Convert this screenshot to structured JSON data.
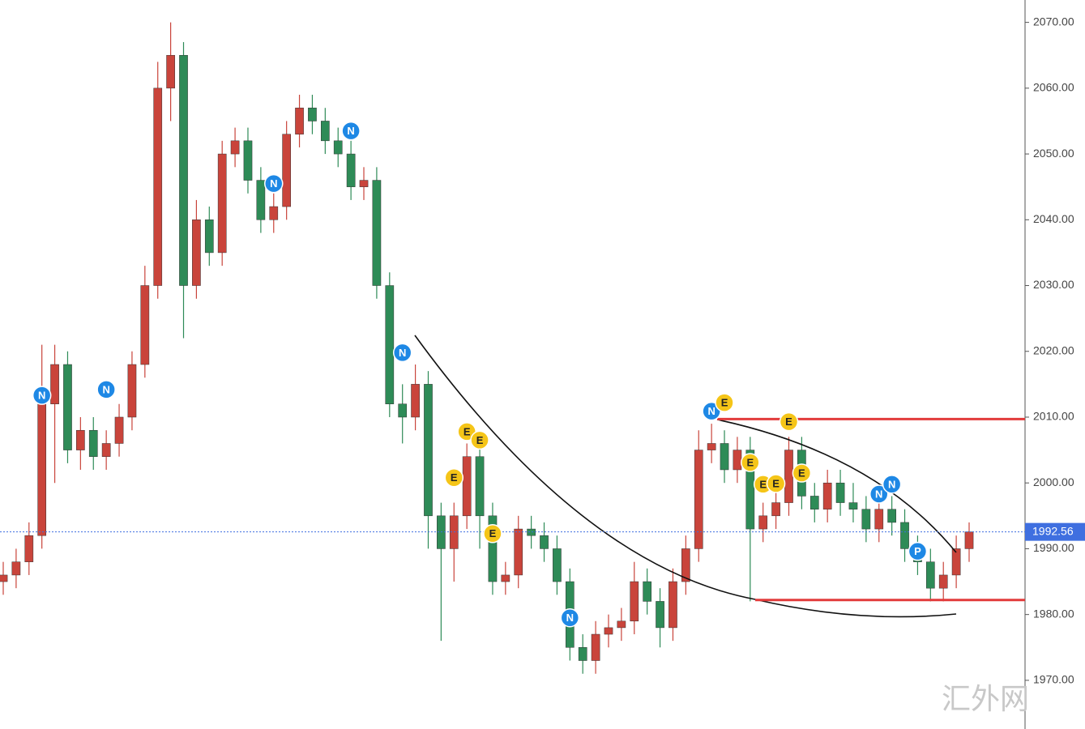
{
  "chart_data": {
    "type": "candlestick",
    "open": [
      1985,
      1986,
      1988,
      1992,
      2012,
      2018,
      2005,
      2008,
      2004,
      2006,
      2010,
      2018,
      2030,
      2060,
      2065,
      2030,
      2040,
      2035,
      2050,
      2052,
      2046,
      2040,
      2042,
      2053,
      2057,
      2055,
      2052,
      2050,
      2045,
      2046,
      2030,
      2012,
      2010,
      2015,
      1995,
      1990,
      1995,
      2004,
      1995,
      1985,
      1986,
      1993,
      1992,
      1990,
      1985,
      1975,
      1973,
      1977,
      1978,
      1979,
      1985,
      1982,
      1978,
      1985,
      1990,
      2005,
      2006,
      2002,
      2005,
      1993,
      1995,
      1997,
      2005,
      1998,
      1996,
      2000,
      1997,
      1996,
      1993,
      1996,
      1994,
      1990,
      1988,
      1984,
      1986,
      1990
    ],
    "high": [
      1988,
      1990,
      1994,
      2021,
      2021,
      2020,
      2010,
      2010,
      2008,
      2012,
      2020,
      2033,
      2064,
      2070,
      2067,
      2043,
      2042,
      2052,
      2054,
      2054,
      2048,
      2044,
      2055,
      2059,
      2059,
      2057,
      2054,
      2052,
      2048,
      2048,
      2032,
      2015,
      2018,
      2017,
      1997,
      1997,
      2006,
      2006,
      1997,
      1988,
      1995,
      1995,
      1994,
      1992,
      1987,
      1977,
      1979,
      1980,
      1981,
      1988,
      1987,
      1984,
      1987,
      1992,
      2008,
      2009,
      2008,
      2007,
      2007,
      1997,
      1999,
      2007,
      2007,
      2000,
      2002,
      2002,
      2000,
      1998,
      1998,
      1998,
      1996,
      1992,
      1990,
      1988,
      1992,
      1994
    ],
    "low": [
      1983,
      1984,
      1986,
      1990,
      2000,
      2003,
      2002,
      2002,
      2002,
      2004,
      2008,
      2016,
      2028,
      2055,
      2022,
      2028,
      2033,
      2033,
      2048,
      2044,
      2038,
      2038,
      2040,
      2051,
      2053,
      2050,
      2048,
      2043,
      2043,
      2028,
      2010,
      2006,
      2008,
      1990,
      1976,
      1985,
      1993,
      1990,
      1983,
      1983,
      1984,
      1990,
      1988,
      1983,
      1973,
      1971,
      1971,
      1975,
      1976,
      1977,
      1980,
      1975,
      1976,
      1983,
      1988,
      2003,
      2000,
      2000,
      1982,
      1991,
      1993,
      1995,
      1996,
      1994,
      1994,
      1995,
      1994,
      1991,
      1991,
      1992,
      1988,
      1986,
      1982,
      1982,
      1984,
      1988
    ],
    "close": [
      1986,
      1988,
      1992,
      2012,
      2018,
      2005,
      2008,
      2004,
      2006,
      2010,
      2018,
      2030,
      2060,
      2065,
      2030,
      2040,
      2035,
      2050,
      2052,
      2046,
      2040,
      2042,
      2053,
      2057,
      2055,
      2052,
      2050,
      2045,
      2046,
      2030,
      2012,
      2010,
      2015,
      1995,
      1990,
      1995,
      2004,
      1995,
      1985,
      1986,
      1993,
      1992,
      1990,
      1985,
      1975,
      1973,
      1977,
      1978,
      1979,
      1985,
      1982,
      1978,
      1985,
      1990,
      2005,
      2006,
      2002,
      2005,
      1993,
      1995,
      1997,
      2005,
      1998,
      1996,
      2000,
      1997,
      1996,
      1993,
      1996,
      1994,
      1990,
      1988,
      1984,
      1986,
      1990,
      1992.56
    ],
    "up_color": "#c9443b",
    "down_color": "#2e8b57",
    "ylim": [
      1962.6,
      2073.4
    ],
    "yticks": [
      {
        "value": 1970,
        "label": "1970.00"
      },
      {
        "value": 1980,
        "label": "1980.00"
      },
      {
        "value": 1990,
        "label": "1990.00"
      },
      {
        "value": 2000,
        "label": "2000.00"
      },
      {
        "value": 2010,
        "label": "2010.00"
      },
      {
        "value": 2020,
        "label": "2020.00"
      },
      {
        "value": 2030,
        "label": "2030.00"
      },
      {
        "value": 2040,
        "label": "2040.00"
      },
      {
        "value": 2050,
        "label": "2050.00"
      },
      {
        "value": 2060,
        "label": "2060.00"
      },
      {
        "value": 2070,
        "label": "2070.00"
      }
    ],
    "last_price": 1992.56,
    "levels": [
      2009.7,
      1982.2
    ],
    "markers": [
      {
        "label": "N",
        "index": 3,
        "price": 2013.3
      },
      {
        "label": "N",
        "index": 8,
        "price": 2014.2
      },
      {
        "label": "N",
        "index": 21,
        "price": 2045.5
      },
      {
        "label": "N",
        "index": 27,
        "price": 2053.5
      },
      {
        "label": "N",
        "index": 31,
        "price": 2019.8
      },
      {
        "label": "E",
        "index": 36,
        "price": 2007.8
      },
      {
        "label": "E",
        "index": 37,
        "price": 2006.5
      },
      {
        "label": "E",
        "index": 35,
        "price": 2000.8
      },
      {
        "label": "E",
        "index": 38,
        "price": 1992.3
      },
      {
        "label": "N",
        "index": 44,
        "price": 1979.5
      },
      {
        "label": "N",
        "index": 55,
        "price": 2010.9
      },
      {
        "label": "E",
        "index": 56,
        "price": 2012.2
      },
      {
        "label": "E",
        "index": 61,
        "price": 2009.3
      },
      {
        "label": "E",
        "index": 58,
        "price": 2003.1
      },
      {
        "label": "E",
        "index": 59,
        "price": 1999.8
      },
      {
        "label": "E",
        "index": 60,
        "price": 1999.9
      },
      {
        "label": "E",
        "index": 62,
        "price": 2001.5
      },
      {
        "label": "N",
        "index": 68,
        "price": 1998.3
      },
      {
        "label": "N",
        "index": 69,
        "price": 1999.8
      },
      {
        "label": "P",
        "index": 71,
        "price": 1989.6
      }
    ],
    "watermark": "汇外网"
  }
}
